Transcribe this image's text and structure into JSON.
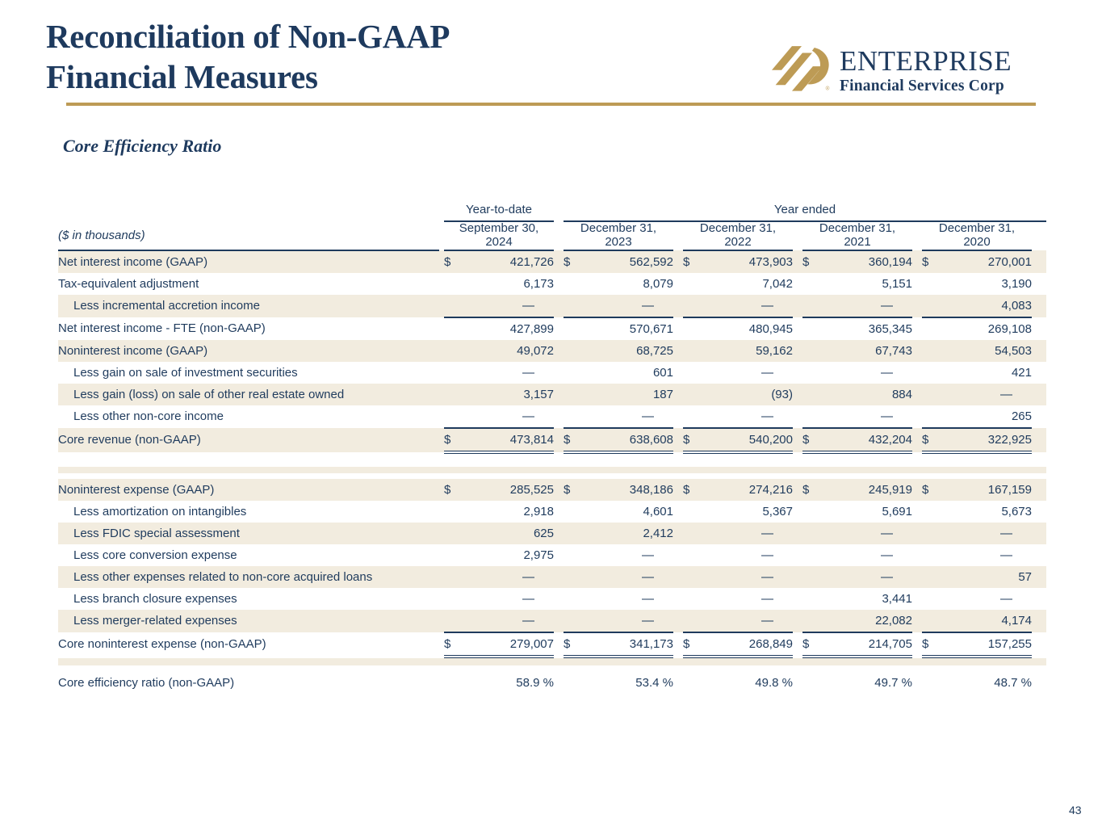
{
  "header": {
    "title_line1": "Reconciliation of Non-GAAP",
    "title_line2": "Financial Measures",
    "section_title": "Core Efficiency Ratio"
  },
  "logo": {
    "name": "ENTERPRISE",
    "subtitle": "Financial Services Corp",
    "registered_mark": "®"
  },
  "colors": {
    "navy": "#1F3B5D",
    "gold": "#BD9B55",
    "row_beige": "#F2ECDF"
  },
  "page": {
    "number": "43"
  },
  "table": {
    "units_label": "($ in thousands)",
    "group_headers": [
      {
        "label": "Year-to-date",
        "groups": 1
      },
      {
        "label": "Year ended",
        "groups": 4
      }
    ],
    "columns": [
      {
        "line1": "September 30,",
        "line2": "2024"
      },
      {
        "line1": "December 31,",
        "line2": "2023"
      },
      {
        "line1": "December 31,",
        "line2": "2022"
      },
      {
        "line1": "December 31,",
        "line2": "2021"
      },
      {
        "line1": "December 31,",
        "line2": "2020"
      }
    ],
    "rows": [
      {
        "label": "Net interest income (GAAP)",
        "dollar": true,
        "shade": true,
        "values": [
          "421,726",
          "562,592",
          "473,903",
          "360,194",
          "270,001"
        ]
      },
      {
        "label": "Tax-equivalent adjustment",
        "shade": false,
        "values": [
          "6,173",
          "8,079",
          "7,042",
          "5,151",
          "3,190"
        ]
      },
      {
        "label": "Less incremental accretion income",
        "indent": true,
        "shade": true,
        "rule": "single",
        "values": [
          "—",
          "—",
          "—",
          "—",
          "4,083"
        ]
      },
      {
        "label": "Net interest income - FTE (non-GAAP)",
        "shade": false,
        "values": [
          "427,899",
          "570,671",
          "480,945",
          "365,345",
          "269,108"
        ]
      },
      {
        "label": "Noninterest income (GAAP)",
        "shade": true,
        "values": [
          "49,072",
          "68,725",
          "59,162",
          "67,743",
          "54,503"
        ]
      },
      {
        "label": "Less gain on sale of investment securities",
        "indent": true,
        "shade": false,
        "values": [
          "—",
          "601",
          "—",
          "—",
          "421"
        ]
      },
      {
        "label": "Less gain (loss) on sale of other real estate owned",
        "indent": true,
        "shade": true,
        "values": [
          "3,157",
          "187",
          "(93)",
          "884",
          "—"
        ]
      },
      {
        "label": "Less other non-core income",
        "indent": true,
        "shade": false,
        "rule": "single",
        "values": [
          "—",
          "—",
          "—",
          "—",
          "265"
        ]
      },
      {
        "label": "Core revenue (non-GAAP)",
        "dollar": true,
        "shade": true,
        "rule": "double",
        "values": [
          "473,814",
          "638,608",
          "540,200",
          "432,204",
          "322,925"
        ]
      },
      {
        "spacer": true,
        "shade": false,
        "h": 16
      },
      {
        "spacer": true,
        "shade": true,
        "h": 8
      },
      {
        "spacer": true,
        "shade": false,
        "h": 7
      },
      {
        "label": "Noninterest expense (GAAP)",
        "dollar": true,
        "shade": true,
        "values": [
          "285,525",
          "348,186",
          "274,216",
          "245,919",
          "167,159"
        ]
      },
      {
        "label": "Less amortization on intangibles",
        "indent": true,
        "shade": false,
        "values": [
          "2,918",
          "4,601",
          "5,367",
          "5,691",
          "5,673"
        ]
      },
      {
        "label": "Less FDIC special assessment",
        "indent": true,
        "shade": true,
        "values": [
          "625",
          "2,412",
          "—",
          "—",
          "—"
        ]
      },
      {
        "label": "Less core conversion expense",
        "indent": true,
        "shade": false,
        "values": [
          "2,975",
          "—",
          "—",
          "—",
          "—"
        ]
      },
      {
        "label": "Less other expenses related to non-core acquired loans",
        "indent": true,
        "shade": true,
        "values": [
          "—",
          "—",
          "—",
          "—",
          "57"
        ]
      },
      {
        "label": "Less branch closure expenses",
        "indent": true,
        "shade": false,
        "values": [
          "—",
          "—",
          "—",
          "3,441",
          "—"
        ]
      },
      {
        "label": "Less merger-related expenses",
        "indent": true,
        "shade": true,
        "rule": "single",
        "values": [
          "—",
          "—",
          "—",
          "22,082",
          "4,174"
        ]
      },
      {
        "label": "Core noninterest expense (non-GAAP)",
        "dollar": true,
        "shade": false,
        "rule": "double",
        "values": [
          "279,007",
          "341,173",
          "268,849",
          "214,705",
          "157,255"
        ]
      },
      {
        "spacer": true,
        "shade": true,
        "h": 9
      },
      {
        "spacer": true,
        "shade": false,
        "h": 8
      },
      {
        "label": "Core efficiency ratio (non-GAAP)",
        "shade": false,
        "values": [
          "58.9 %",
          "53.4 %",
          "49.8 %",
          "49.7 %",
          "48.7 %"
        ]
      }
    ],
    "dollar_sign": "$"
  }
}
